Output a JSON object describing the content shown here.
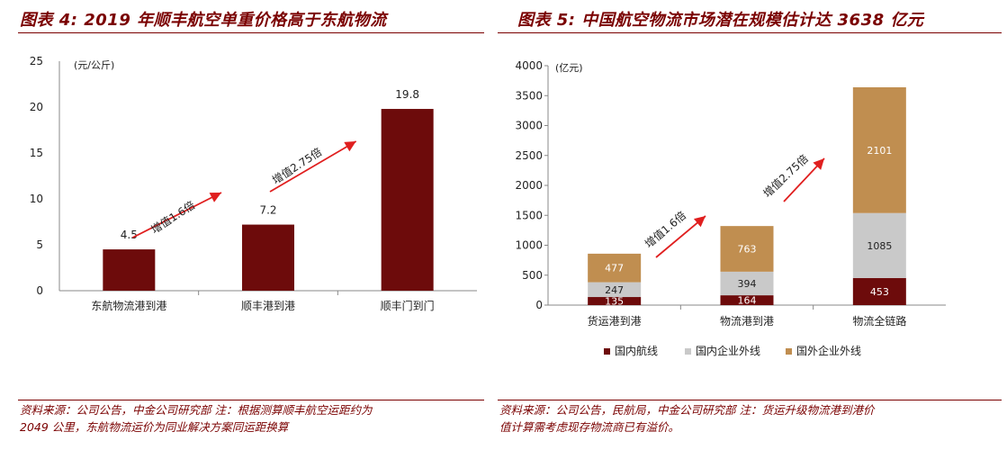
{
  "left": {
    "title": "图表 4: 2019 年顺丰航空单重价格高于东航物流",
    "source_line1": "资料来源：公司公告，中金公司研究部   注：根据测算顺丰航空运距约为",
    "source_line2": "2049 公里，东航物流运价为同业解决方案同运距换算"
  },
  "right": {
    "title": "图表 5:  中国航空物流市场潜在规模估计达 3638 亿元",
    "source_line1": "资料来源：公司公告，民航局，中金公司研究部 注：货运升级物流港到港价",
    "source_line2": "值计算需考虑现存物流商已有溢价。"
  },
  "chart_data": [
    {
      "type": "bar",
      "title": "2019 年顺丰航空单重价格高于东航物流",
      "categories": [
        "东航物流港到港",
        "顺丰港到港",
        "顺丰门到门"
      ],
      "values": [
        4.5,
        7.2,
        19.8
      ],
      "value_labels": [
        "4.5",
        "7.2",
        "19.8"
      ],
      "ylabel": "(元/公斤)",
      "ylim": [
        0,
        25
      ],
      "yticks": [
        "0",
        "5",
        "10",
        "15",
        "20",
        "25"
      ],
      "grid": false,
      "colors": {
        "bar": "#6d0b0b",
        "arrow": "#e01f1f"
      },
      "annotations": [
        "增值1.6倍",
        "增值2.75倍"
      ]
    },
    {
      "type": "bar",
      "stacked": true,
      "title": "中国航空物流市场潜在规模估计达 3638 亿元",
      "categories": [
        "货运港到港",
        "物流港到港",
        "物流全链路"
      ],
      "series": [
        {
          "name": "国内航线",
          "values": [
            135,
            164,
            453
          ],
          "labels": [
            "135",
            "164",
            "453"
          ],
          "color": "#6d0b0b"
        },
        {
          "name": "国内企业外线",
          "values": [
            247,
            394,
            1085
          ],
          "labels": [
            "247",
            "394",
            "1085"
          ],
          "color": "#c9c9c9"
        },
        {
          "name": "国外企业外线",
          "values": [
            477,
            763,
            2101
          ],
          "labels": [
            "477",
            "763",
            "2101"
          ],
          "color": "#c08e50"
        }
      ],
      "ylabel": "(亿元)",
      "ylim": [
        0,
        4000
      ],
      "yticks": [
        "0",
        "500",
        "1000",
        "1500",
        "2000",
        "2500",
        "3000",
        "3500",
        "4000"
      ],
      "grid": false,
      "legend_position": "bottom",
      "annotations": [
        "增值1.6倍",
        "增值2.75倍"
      ]
    }
  ]
}
